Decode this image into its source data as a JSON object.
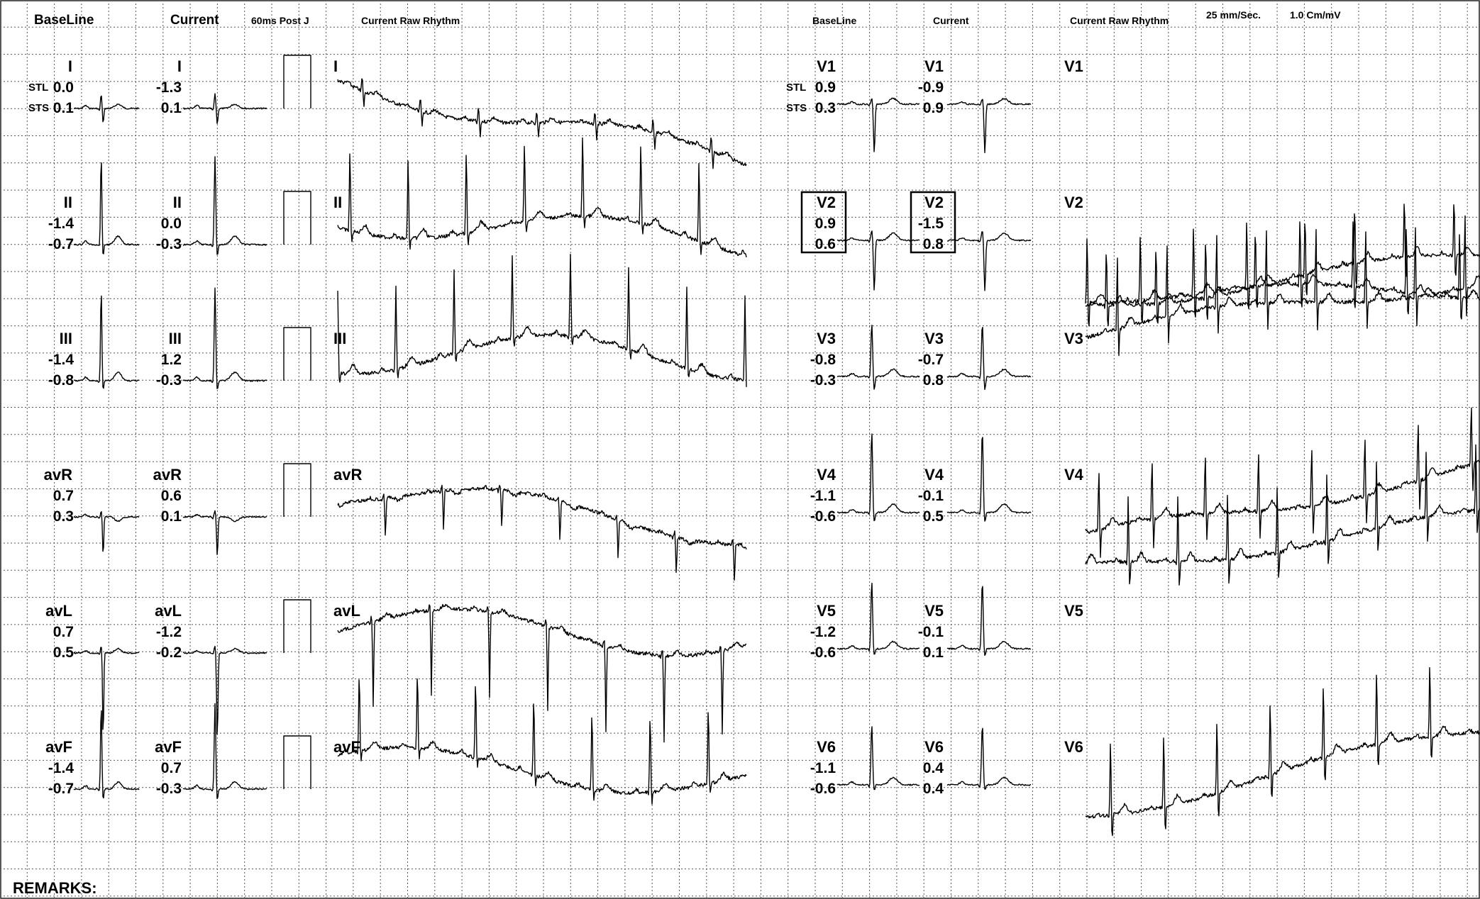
{
  "header": {
    "baseline_left": "BaseLine",
    "current_left": "Current",
    "post_j": "60ms Post J",
    "raw_rhythm_left": "Current Raw Rhythm",
    "baseline_right": "BaseLine",
    "current_right": "Current",
    "raw_rhythm_right": "Current Raw Rhythm",
    "speed": "25 mm/Sec.",
    "gain": "1.0 Cm/mV"
  },
  "row_tags": {
    "stl": "STL",
    "sts": "STS"
  },
  "limb_leads": [
    {
      "lead": "I",
      "baseline": [
        "0.0",
        "0.1"
      ],
      "current": [
        "-1.3",
        "0.1"
      ]
    },
    {
      "lead": "II",
      "baseline": [
        "-1.4",
        "-0.7"
      ],
      "current": [
        "0.0",
        "-0.3"
      ]
    },
    {
      "lead": "III",
      "baseline": [
        "-1.4",
        "-0.8"
      ],
      "current": [
        "1.2",
        "-0.3"
      ]
    },
    {
      "lead": "avR",
      "baseline": [
        "0.7",
        "0.3"
      ],
      "current": [
        "0.6",
        "0.1"
      ]
    },
    {
      "lead": "avL",
      "baseline": [
        "0.7",
        "0.5"
      ],
      "current": [
        "-1.2",
        "-0.2"
      ]
    },
    {
      "lead": "avF",
      "baseline": [
        "-1.4",
        "-0.7"
      ],
      "current": [
        "0.7",
        "-0.3"
      ]
    }
  ],
  "chest_leads": [
    {
      "lead": "V1",
      "baseline": [
        "0.9",
        "0.3"
      ],
      "current": [
        "-0.9",
        "0.9"
      ]
    },
    {
      "lead": "V2",
      "baseline": [
        "0.9",
        "0.6"
      ],
      "current": [
        "-1.5",
        "0.8"
      ]
    },
    {
      "lead": "V3",
      "baseline": [
        "-0.8",
        "-0.3"
      ],
      "current": [
        "-0.7",
        "0.8"
      ]
    },
    {
      "lead": "V4",
      "baseline": [
        "-1.1",
        "-0.6"
      ],
      "current": [
        "-0.1",
        "0.5"
      ]
    },
    {
      "lead": "V5",
      "baseline": [
        "-1.2",
        "-0.6"
      ],
      "current": [
        "-0.1",
        "0.1"
      ]
    },
    {
      "lead": "V6",
      "baseline": [
        "-1.1",
        "-0.6"
      ],
      "current": [
        "0.4",
        "0.4"
      ]
    }
  ],
  "highlighted_lead": "V2",
  "remarks_label": "REMARKS:",
  "colors": {
    "trace": "#000000",
    "grid": "#555555",
    "background": "#ffffff"
  },
  "chart_data": {
    "type": "line",
    "title": "",
    "series": [
      {
        "name": "I"
      },
      {
        "name": "II"
      },
      {
        "name": "III"
      },
      {
        "name": "avR"
      },
      {
        "name": "avL"
      },
      {
        "name": "avF"
      },
      {
        "name": "V1"
      },
      {
        "name": "V2"
      },
      {
        "name": "V3"
      },
      {
        "name": "V4"
      },
      {
        "name": "V5"
      },
      {
        "name": "V6"
      }
    ],
    "grid": true
  }
}
